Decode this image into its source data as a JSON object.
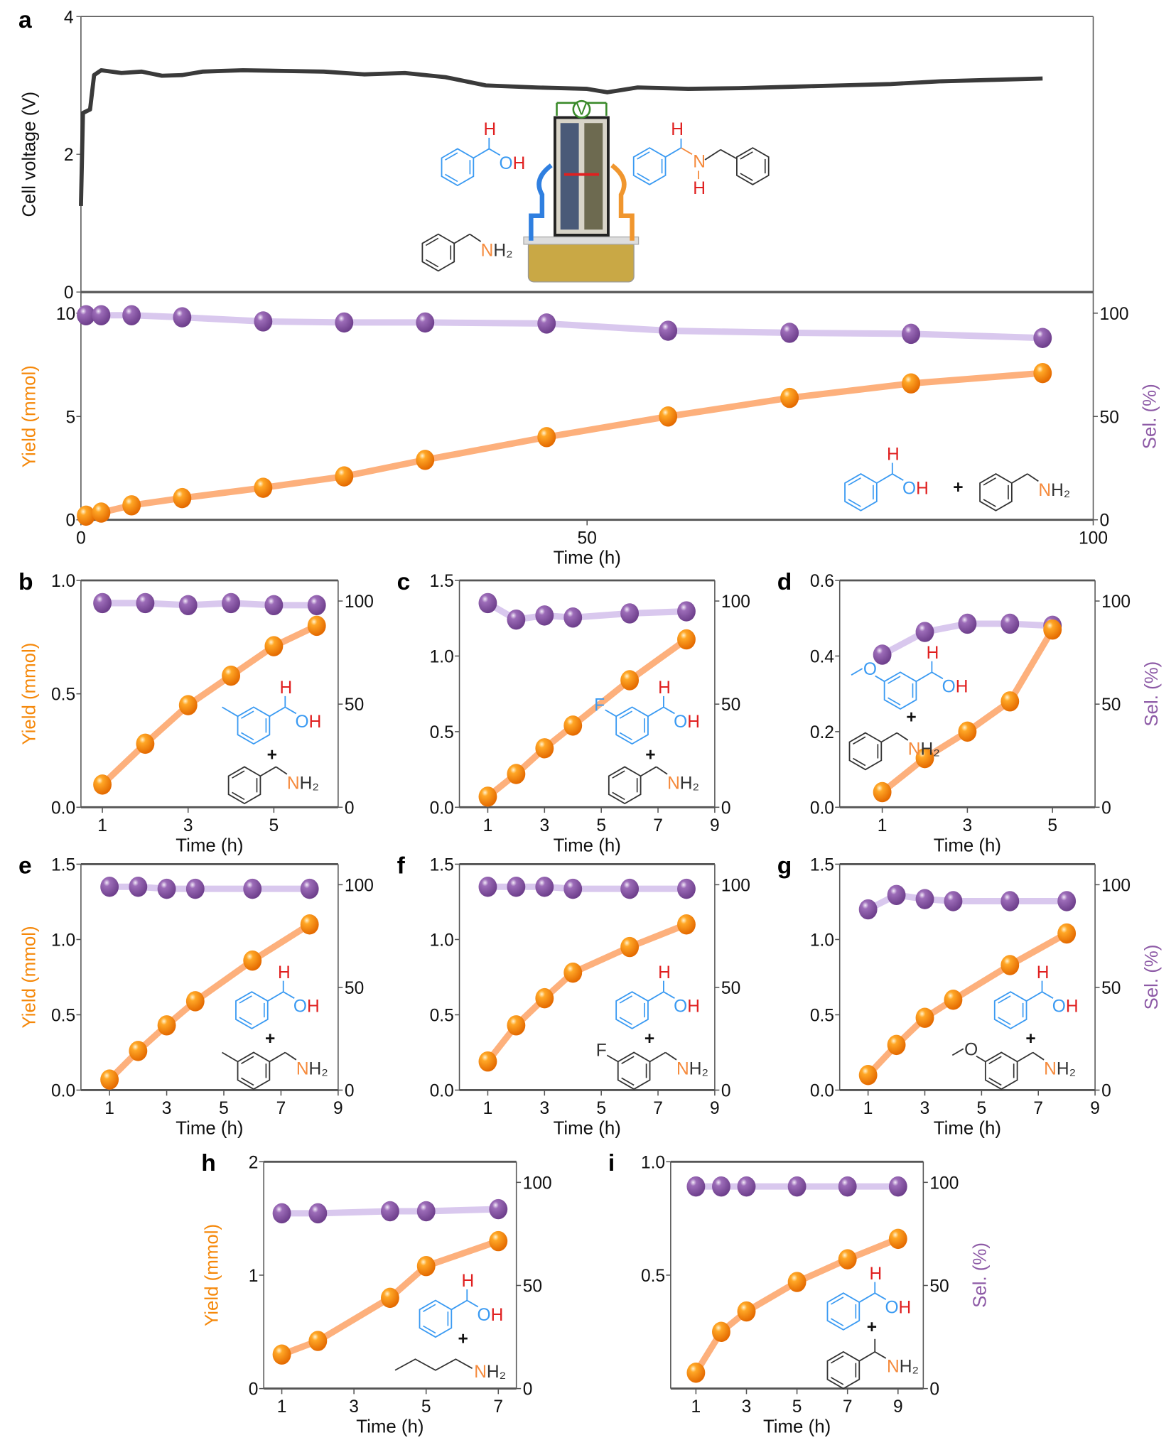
{
  "colors": {
    "yield": "#f5880a",
    "yield_line": "#fdb07c",
    "sel": "#8d5aa6",
    "sel_line": "#d9c8ee",
    "voltage": "#3a3a3a",
    "alcohol": "#3a9af2",
    "H": "#e02020",
    "N": "#f58a3c",
    "black": "#333333"
  },
  "chart_data": [
    {
      "panel": "a",
      "type": "line",
      "part": "voltage",
      "ylabel": "Cell voltage (V)",
      "ylim": [
        0,
        4
      ],
      "yticks": [
        0,
        2,
        4
      ],
      "xlim": [
        0,
        100
      ],
      "series": [
        {
          "values": [
            [
              0,
              1.25
            ],
            [
              0.2,
              2.6
            ],
            [
              0.9,
              2.65
            ],
            [
              1.3,
              3.15
            ],
            [
              2,
              3.22
            ],
            [
              4,
              3.18
            ],
            [
              6,
              3.2
            ],
            [
              8,
              3.14
            ],
            [
              10,
              3.15
            ],
            [
              12,
              3.2
            ],
            [
              16,
              3.22
            ],
            [
              20,
              3.21
            ],
            [
              24,
              3.2
            ],
            [
              28,
              3.16
            ],
            [
              32,
              3.18
            ],
            [
              36,
              3.12
            ],
            [
              40,
              3.0
            ],
            [
              45,
              2.97
            ],
            [
              50,
              2.95
            ],
            [
              52,
              2.9
            ],
            [
              55,
              2.97
            ],
            [
              60,
              2.95
            ],
            [
              65,
              2.96
            ],
            [
              70,
              2.98
            ],
            [
              75,
              3.0
            ],
            [
              80,
              3.02
            ],
            [
              85,
              3.06
            ],
            [
              90,
              3.08
            ],
            [
              95,
              3.1
            ]
          ]
        }
      ]
    },
    {
      "panel": "a",
      "type": "line",
      "part": "yield-selectivity",
      "xlabel": "Time (h)",
      "ylabel": "Yield (mmol)",
      "y2label": "Sel. (%)",
      "xlim": [
        0,
        100
      ],
      "xticks": [
        0,
        50,
        100
      ],
      "ylim": [
        0,
        10
      ],
      "yticks": [
        0,
        5,
        10
      ],
      "y2lim": [
        0,
        100
      ],
      "y2ticks": [
        0,
        50,
        100
      ],
      "x": [
        0.5,
        2,
        5,
        10,
        18,
        26,
        34,
        46,
        58,
        70,
        82,
        95
      ],
      "series": [
        {
          "name": "Yield",
          "axis": "left",
          "values": [
            0.2,
            0.35,
            0.7,
            1.05,
            1.55,
            2.1,
            2.9,
            4.0,
            5.0,
            5.9,
            6.6,
            7.1
          ]
        },
        {
          "name": "Sel.",
          "axis": "right",
          "values": [
            99,
            99,
            99,
            98,
            96,
            95.5,
            95.5,
            95,
            91.5,
            90.5,
            90,
            88
          ]
        }
      ],
      "reactants": {
        "alcohol_H": "H",
        "alcohol_O": "O",
        "alcohol_OH_H": "H",
        "plus": "+",
        "amine_N": "N",
        "amine_H2": "H₂"
      }
    },
    {
      "panel": "b",
      "type": "line",
      "xlabel": "Time (h)",
      "ylabel": "Yield (mmol)",
      "y2label": "",
      "xlim": [
        0.5,
        6.5
      ],
      "xticks": [
        1,
        3,
        5
      ],
      "ylim": [
        0,
        1.0
      ],
      "yticks": [
        "0.0",
        "0.5",
        "1.0"
      ],
      "y2lim": [
        0,
        110
      ],
      "y2ticks": [
        0,
        50,
        100
      ],
      "x": [
        1,
        2,
        3,
        4,
        5,
        6
      ],
      "series": [
        {
          "name": "Yield",
          "axis": "left",
          "values": [
            0.1,
            0.28,
            0.45,
            0.58,
            0.71,
            0.8
          ]
        },
        {
          "name": "Sel.",
          "axis": "right",
          "values": [
            99,
            99,
            98,
            99,
            98,
            98
          ]
        }
      ],
      "reactants": {
        "substituent": "",
        "alcohol_H": "H",
        "alcohol_O": "O",
        "alcohol_OH_H": "H",
        "plus": "+",
        "amine_N": "N",
        "amine_H2": "H₂"
      }
    },
    {
      "panel": "c",
      "type": "line",
      "xlabel": "Time (h)",
      "ylabel": "",
      "y2label": "",
      "xlim": [
        0,
        9
      ],
      "xticks": [
        1,
        3,
        5,
        7,
        9
      ],
      "ylim": [
        0,
        1.5
      ],
      "yticks": [
        "0.0",
        "0.5",
        "1.0",
        "1.5"
      ],
      "y2lim": [
        0,
        110
      ],
      "y2ticks": [
        0,
        50,
        100
      ],
      "x": [
        1,
        2,
        3,
        4,
        6,
        8
      ],
      "series": [
        {
          "name": "Yield",
          "axis": "left",
          "values": [
            0.07,
            0.22,
            0.39,
            0.54,
            0.84,
            1.11
          ]
        },
        {
          "name": "Sel.",
          "axis": "right",
          "values": [
            99,
            91,
            93,
            92,
            94,
            95
          ]
        }
      ],
      "reactants": {
        "substituent": "F",
        "alcohol_H": "H",
        "alcohol_O": "O",
        "alcohol_OH_H": "H",
        "plus": "+",
        "amine_N": "N",
        "amine_H2": "H₂"
      }
    },
    {
      "panel": "d",
      "type": "line",
      "xlabel": "Time (h)",
      "ylabel": "",
      "y2label": "Sel. (%)",
      "xlim": [
        0,
        6
      ],
      "xticks": [
        1,
        3,
        5
      ],
      "ylim": [
        0,
        0.6
      ],
      "yticks": [
        "0.0",
        "0.2",
        "0.4",
        "0.6"
      ],
      "y2lim": [
        0,
        110
      ],
      "y2ticks": [
        0,
        50,
        100
      ],
      "x": [
        1,
        2,
        3,
        4,
        5
      ],
      "series": [
        {
          "name": "Yield",
          "axis": "left",
          "values": [
            0.04,
            0.13,
            0.2,
            0.28,
            0.47
          ]
        },
        {
          "name": "Sel.",
          "axis": "right",
          "values": [
            74,
            85,
            89,
            89,
            88
          ]
        }
      ],
      "reactants": {
        "substituent": "O",
        "alcohol_H": "H",
        "alcohol_O": "O",
        "alcohol_OH_H": "H",
        "plus": "+",
        "amine_N": "N",
        "amine_H2": "H₂"
      }
    },
    {
      "panel": "e",
      "type": "line",
      "xlabel": "Time (h)",
      "ylabel": "Yield (mmol)",
      "y2label": "",
      "xlim": [
        0,
        9
      ],
      "xticks": [
        1,
        3,
        5,
        7,
        9
      ],
      "ylim": [
        0,
        1.5
      ],
      "yticks": [
        "0.0",
        "0.5",
        "1.0",
        "1.5"
      ],
      "y2lim": [
        0,
        110
      ],
      "y2ticks": [
        0,
        50,
        100
      ],
      "x": [
        1,
        2,
        3,
        4,
        6,
        8
      ],
      "series": [
        {
          "name": "Yield",
          "axis": "left",
          "values": [
            0.07,
            0.26,
            0.43,
            0.59,
            0.86,
            1.1
          ]
        },
        {
          "name": "Sel.",
          "axis": "right",
          "values": [
            99,
            99,
            98,
            98,
            98,
            98
          ]
        }
      ],
      "reactants": {
        "amine_substituent": "",
        "alcohol_H": "H",
        "alcohol_O": "O",
        "alcohol_OH_H": "H",
        "plus": "+",
        "amine_N": "N",
        "amine_H2": "H₂"
      }
    },
    {
      "panel": "f",
      "type": "line",
      "xlabel": "Time (h)",
      "ylabel": "",
      "y2label": "",
      "xlim": [
        0,
        9
      ],
      "xticks": [
        1,
        3,
        5,
        7,
        9
      ],
      "ylim": [
        0,
        1.5
      ],
      "yticks": [
        "0.0",
        "0.5",
        "1.0",
        "1.5"
      ],
      "y2lim": [
        0,
        110
      ],
      "y2ticks": [
        0,
        50,
        100
      ],
      "x": [
        1,
        2,
        3,
        4,
        6,
        8
      ],
      "series": [
        {
          "name": "Yield",
          "axis": "left",
          "values": [
            0.19,
            0.43,
            0.61,
            0.78,
            0.95,
            1.1
          ]
        },
        {
          "name": "Sel.",
          "axis": "right",
          "values": [
            99,
            99,
            99,
            98,
            98,
            98
          ]
        }
      ],
      "reactants": {
        "amine_substituent": "F",
        "alcohol_H": "H",
        "alcohol_O": "O",
        "alcohol_OH_H": "H",
        "plus": "+",
        "amine_N": "N",
        "amine_H2": "H₂"
      }
    },
    {
      "panel": "g",
      "type": "line",
      "xlabel": "Time (h)",
      "ylabel": "",
      "y2label": "Sel. (%)",
      "xlim": [
        0,
        9
      ],
      "xticks": [
        1,
        3,
        5,
        7,
        9
      ],
      "ylim": [
        0,
        1.5
      ],
      "yticks": [
        "0.0",
        "0.5",
        "1.0",
        "1.5"
      ],
      "y2lim": [
        0,
        110
      ],
      "y2ticks": [
        0,
        50,
        100
      ],
      "x": [
        1,
        2,
        3,
        4,
        6,
        8
      ],
      "series": [
        {
          "name": "Yield",
          "axis": "left",
          "values": [
            0.1,
            0.3,
            0.48,
            0.6,
            0.83,
            1.04
          ]
        },
        {
          "name": "Sel.",
          "axis": "right",
          "values": [
            88,
            95,
            93,
            92,
            92,
            92
          ]
        }
      ],
      "reactants": {
        "amine_substituent": "O",
        "alcohol_H": "H",
        "alcohol_O": "O",
        "alcohol_OH_H": "H",
        "plus": "+",
        "amine_N": "N",
        "amine_H2": "H₂"
      }
    },
    {
      "panel": "h",
      "type": "line",
      "xlabel": "Time (h)",
      "ylabel": "Yield (mmol)",
      "y2label": "",
      "xlim": [
        0.5,
        7.5
      ],
      "xticks": [
        1,
        3,
        5,
        7
      ],
      "ylim": [
        0,
        2
      ],
      "yticks": [
        "0",
        "1",
        "2"
      ],
      "y2lim": [
        0,
        110
      ],
      "y2ticks": [
        0,
        50,
        100
      ],
      "x": [
        1,
        2,
        4,
        5,
        7
      ],
      "series": [
        {
          "name": "Yield",
          "axis": "left",
          "values": [
            0.3,
            0.42,
            0.8,
            1.08,
            1.3
          ]
        },
        {
          "name": "Sel.",
          "axis": "right",
          "values": [
            85,
            85,
            86,
            86,
            87
          ]
        }
      ],
      "reactants": {
        "alcohol_H": "H",
        "alcohol_O": "O",
        "alcohol_OH_H": "H",
        "plus": "+",
        "amine_N": "N",
        "amine_H2": "H₂"
      }
    },
    {
      "panel": "i",
      "type": "line",
      "xlabel": "Time (h)",
      "ylabel": "",
      "y2label": "Sel. (%)",
      "xlim": [
        0,
        10
      ],
      "xticks": [
        1,
        3,
        5,
        7,
        9
      ],
      "ylim": [
        0,
        1.0
      ],
      "yticks": [
        "0.5",
        "1.0"
      ],
      "y2lim": [
        0,
        110
      ],
      "y2ticks": [
        0,
        50,
        100
      ],
      "x": [
        1,
        2,
        3,
        5,
        7,
        9
      ],
      "series": [
        {
          "name": "Yield",
          "axis": "left",
          "values": [
            0.07,
            0.25,
            0.34,
            0.47,
            0.57,
            0.66
          ]
        },
        {
          "name": "Sel.",
          "axis": "right",
          "values": [
            98,
            98,
            98,
            98,
            98,
            98
          ]
        }
      ],
      "reactants": {
        "alcohol_H": "H",
        "alcohol_O": "O",
        "alcohol_OH_H": "H",
        "plus": "+",
        "amine_N": "N",
        "amine_H2": "H₂"
      }
    }
  ],
  "inset": {
    "reactant_alcohol": {
      "H": "H",
      "O": "O",
      "OH_H": "H"
    },
    "reactant_amine": {
      "N": "N",
      "H2": "H₂"
    },
    "product": {
      "N": "N",
      "H_top": "H",
      "H_bottom": "H"
    },
    "voltmeter": "V"
  }
}
